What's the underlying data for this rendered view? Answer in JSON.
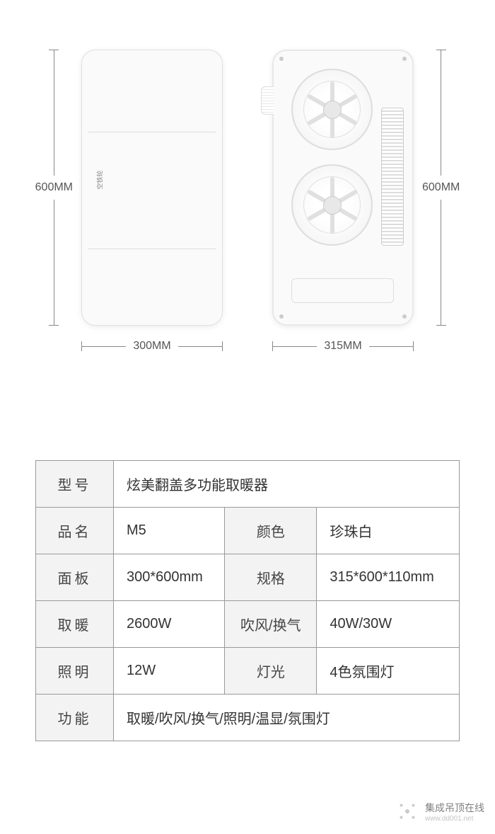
{
  "dimensions": {
    "front_height": "600MM",
    "front_width": "300MM",
    "back_height": "600MM",
    "back_width": "315MM"
  },
  "brand_text": "空铁轮",
  "spec": {
    "model_label": "型号",
    "model_value": "炫美翻盖多功能取暖器",
    "name_label": "品名",
    "name_value": "M5",
    "color_label": "颜色",
    "color_value": "珍珠白",
    "panel_label": "面板",
    "panel_value": "300*600mm",
    "size_label": "规格",
    "size_value": "315*600*110mm",
    "heating_label": "取暖",
    "heating_value": "2600W",
    "fan_label": "吹风/换气",
    "fan_value": "40W/30W",
    "lighting_label": "照明",
    "lighting_value": "12W",
    "light_label": "灯光",
    "light_value": "4色氛围灯",
    "function_label": "功能",
    "function_value": "取暖/吹风/换气/照明/温显/氛围灯"
  },
  "watermark": {
    "title": "集成吊顶在线",
    "url": "www.dd001.net"
  }
}
